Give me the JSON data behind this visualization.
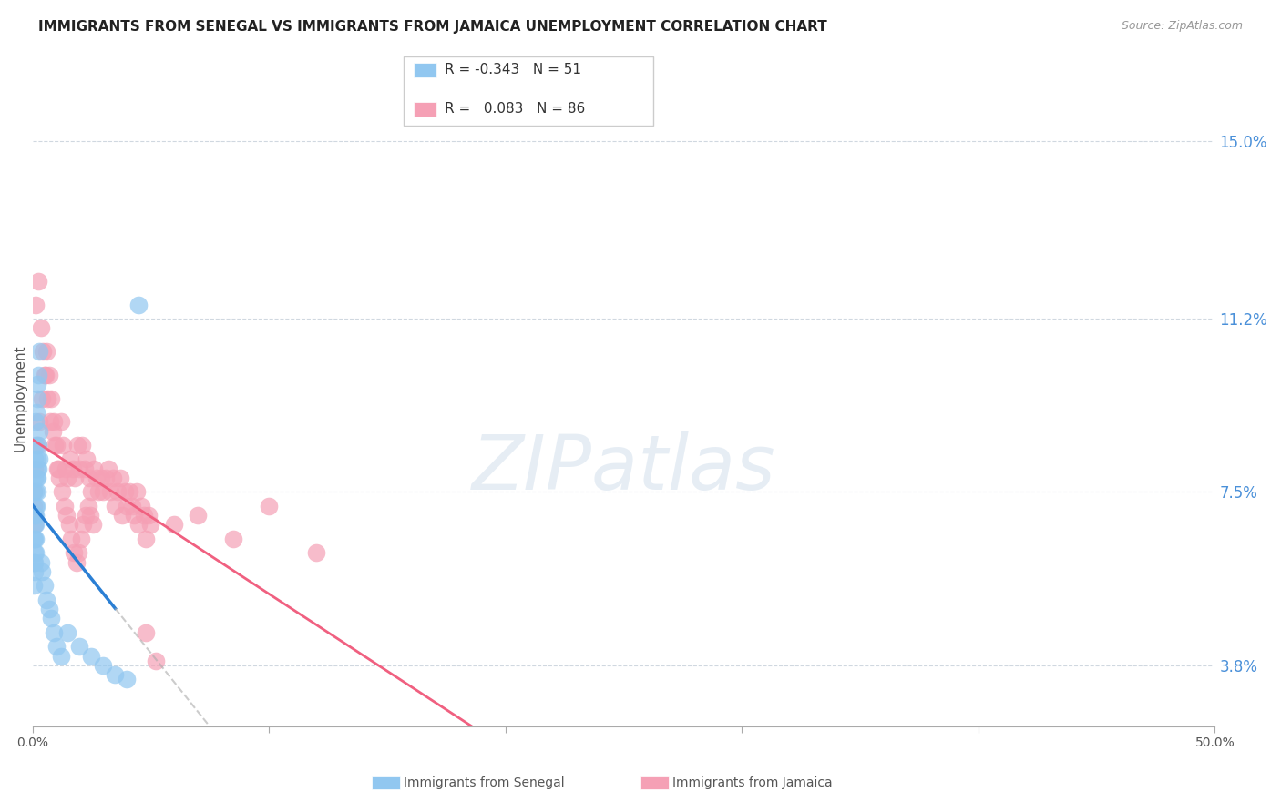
{
  "title": "IMMIGRANTS FROM SENEGAL VS IMMIGRANTS FROM JAMAICA UNEMPLOYMENT CORRELATION CHART",
  "source": "Source: ZipAtlas.com",
  "ylabel": "Unemployment",
  "yticks": [
    3.8,
    7.5,
    11.2,
    15.0
  ],
  "xlim": [
    0.0,
    50.0
  ],
  "ylim": [
    2.5,
    16.5
  ],
  "senegal_R": -0.343,
  "senegal_N": 51,
  "jamaica_R": 0.083,
  "jamaica_N": 86,
  "senegal_color": "#91c7f0",
  "jamaica_color": "#f5a0b5",
  "senegal_line_color": "#2b7fd4",
  "jamaica_line_color": "#f06080",
  "watermark": "ZIPatlas",
  "watermark_color": "#c8d8e8",
  "background_color": "#ffffff",
  "grid_color": "#d0d8e0",
  "title_fontsize": 11,
  "senegal_x": [
    0.05,
    0.08,
    0.1,
    0.12,
    0.15,
    0.18,
    0.2,
    0.22,
    0.25,
    0.28,
    0.05,
    0.08,
    0.1,
    0.12,
    0.15,
    0.18,
    0.2,
    0.22,
    0.25,
    0.28,
    0.05,
    0.08,
    0.1,
    0.12,
    0.15,
    0.18,
    0.2,
    0.22,
    0.25,
    0.28,
    0.05,
    0.08,
    0.1,
    0.12,
    0.15,
    0.35,
    0.4,
    0.5,
    0.6,
    0.7,
    0.8,
    0.9,
    1.0,
    1.2,
    1.5,
    2.0,
    2.5,
    3.0,
    3.5,
    4.0,
    4.5
  ],
  "senegal_y": [
    7.5,
    7.8,
    8.2,
    8.5,
    9.0,
    9.2,
    9.5,
    9.8,
    10.0,
    10.5,
    6.5,
    6.8,
    7.0,
    7.2,
    7.5,
    7.8,
    8.0,
    8.2,
    8.5,
    8.8,
    6.0,
    6.2,
    6.5,
    6.8,
    7.0,
    7.2,
    7.5,
    7.8,
    8.0,
    8.2,
    5.5,
    5.8,
    6.0,
    6.2,
    6.5,
    6.0,
    5.8,
    5.5,
    5.2,
    5.0,
    4.8,
    4.5,
    4.2,
    4.0,
    4.5,
    4.2,
    4.0,
    3.8,
    3.6,
    3.5,
    11.5
  ],
  "jamaica_x": [
    0.1,
    0.2,
    0.3,
    0.4,
    0.5,
    0.6,
    0.7,
    0.8,
    0.9,
    1.0,
    1.1,
    1.2,
    1.3,
    1.4,
    1.5,
    1.6,
    1.7,
    1.8,
    1.9,
    2.0,
    2.1,
    2.2,
    2.3,
    2.4,
    2.5,
    2.6,
    2.7,
    2.8,
    2.9,
    3.0,
    3.1,
    3.2,
    3.3,
    3.4,
    3.5,
    3.6,
    3.7,
    3.8,
    3.9,
    4.0,
    4.1,
    4.2,
    4.3,
    4.4,
    4.5,
    4.6,
    4.7,
    4.8,
    4.9,
    5.0,
    0.15,
    0.25,
    0.35,
    0.45,
    0.55,
    0.65,
    0.75,
    0.85,
    0.95,
    1.05,
    1.15,
    1.25,
    1.35,
    1.45,
    1.55,
    1.65,
    1.75,
    1.85,
    1.95,
    2.05,
    2.15,
    2.25,
    2.35,
    2.45,
    2.55,
    6.0,
    7.0,
    8.5,
    10.0,
    12.0,
    5.2,
    4.8,
    0.05,
    0.06,
    0.07,
    0.08
  ],
  "jamaica_y": [
    8.0,
    8.5,
    9.0,
    9.5,
    10.0,
    10.5,
    10.0,
    9.5,
    9.0,
    8.5,
    8.0,
    9.0,
    8.5,
    8.0,
    7.8,
    8.2,
    8.0,
    7.8,
    8.5,
    8.0,
    8.5,
    8.0,
    8.2,
    7.8,
    7.5,
    8.0,
    7.8,
    7.5,
    7.8,
    7.5,
    7.8,
    8.0,
    7.5,
    7.8,
    7.2,
    7.5,
    7.8,
    7.0,
    7.5,
    7.2,
    7.5,
    7.2,
    7.0,
    7.5,
    6.8,
    7.2,
    7.0,
    6.5,
    7.0,
    6.8,
    11.5,
    12.0,
    11.0,
    10.5,
    10.0,
    9.5,
    9.0,
    8.8,
    8.5,
    8.0,
    7.8,
    7.5,
    7.2,
    7.0,
    6.8,
    6.5,
    6.2,
    6.0,
    6.2,
    6.5,
    6.8,
    7.0,
    7.2,
    7.0,
    6.8,
    6.8,
    7.0,
    6.5,
    7.2,
    6.2,
    3.9,
    4.5,
    7.5,
    7.2,
    7.0,
    6.8
  ]
}
